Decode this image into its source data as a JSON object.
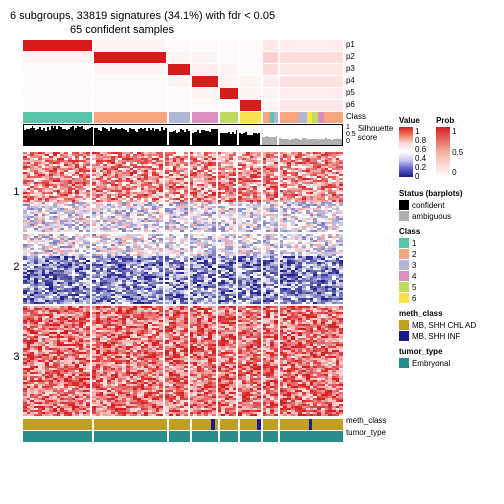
{
  "title": "6 subgroups, 33819 signatures (34.1%) with fdr < 0.05",
  "subtitle": "65 confident samples",
  "prob_labels": [
    "p1",
    "p2",
    "p3",
    "p4",
    "p5",
    "p6"
  ],
  "class_label": "Class",
  "silh_label": "Silhouette score",
  "silh_ticks": [
    "1",
    "0.5",
    "0"
  ],
  "bottom_labels": [
    "meth_class",
    "tumor_type"
  ],
  "cluster_labels": [
    "1",
    "2",
    "3"
  ],
  "group_widths": [
    72,
    76,
    22,
    28,
    18,
    22,
    16,
    66
  ],
  "class_colors": [
    "#5ac3a8",
    "#f4a582",
    "#b0b7d6",
    "#d98fc1",
    "#bfd961",
    "#f9e24b",
    "#f4a582",
    "#mix"
  ],
  "class_segs": [
    {
      "w": 72,
      "c": "#5ac3a8"
    },
    {
      "w": 2,
      "c": "#fff"
    },
    {
      "w": 76,
      "c": "#f4a582"
    },
    {
      "w": 2,
      "c": "#fff"
    },
    {
      "w": 22,
      "c": "#b0b7d6"
    },
    {
      "w": 2,
      "c": "#fff"
    },
    {
      "w": 28,
      "c": "#d98fc1"
    },
    {
      "w": 2,
      "c": "#fff"
    },
    {
      "w": 18,
      "c": "#bfd961"
    },
    {
      "w": 2,
      "c": "#fff"
    },
    {
      "w": 22,
      "c": "#f9e24b"
    },
    {
      "w": 2,
      "c": "#fff"
    },
    {
      "w": 8,
      "c": "#f4a582"
    },
    {
      "w": 4,
      "c": "#5ac3a8"
    },
    {
      "w": 4,
      "c": "#b0b7d6"
    },
    {
      "w": 2,
      "c": "#fff"
    },
    {
      "w": 20,
      "c": "#f4a582"
    },
    {
      "w": 8,
      "c": "#b0b7d6"
    },
    {
      "w": 6,
      "c": "#f9e24b"
    },
    {
      "w": 6,
      "c": "#bfd961"
    },
    {
      "w": 6,
      "c": "#d98fc1"
    },
    {
      "w": 20,
      "c": "#f4a582"
    }
  ],
  "meth_segs": [
    {
      "w": 72,
      "c": "#bfa023"
    },
    {
      "w": 2,
      "c": "#fff"
    },
    {
      "w": 76,
      "c": "#bfa023"
    },
    {
      "w": 2,
      "c": "#fff"
    },
    {
      "w": 22,
      "c": "#bfa023"
    },
    {
      "w": 2,
      "c": "#fff"
    },
    {
      "w": 20,
      "c": "#bfa023"
    },
    {
      "w": 4,
      "c": "#1a1a8a"
    },
    {
      "w": 4,
      "c": "#bfa023"
    },
    {
      "w": 2,
      "c": "#fff"
    },
    {
      "w": 18,
      "c": "#bfa023"
    },
    {
      "w": 2,
      "c": "#fff"
    },
    {
      "w": 18,
      "c": "#bfa023"
    },
    {
      "w": 4,
      "c": "#1a1a8a"
    },
    {
      "w": 2,
      "c": "#fff"
    },
    {
      "w": 16,
      "c": "#bfa023"
    },
    {
      "w": 2,
      "c": "#fff"
    },
    {
      "w": 30,
      "c": "#bfa023"
    },
    {
      "w": 4,
      "c": "#1a1a8a"
    },
    {
      "w": 32,
      "c": "#bfa023"
    }
  ],
  "tumor_segs": [
    {
      "w": 72,
      "c": "#2b8c8c"
    },
    {
      "w": 2,
      "c": "#fff"
    },
    {
      "w": 76,
      "c": "#2b8c8c"
    },
    {
      "w": 2,
      "c": "#fff"
    },
    {
      "w": 22,
      "c": "#2b8c8c"
    },
    {
      "w": 2,
      "c": "#fff"
    },
    {
      "w": 28,
      "c": "#2b8c8c"
    },
    {
      "w": 2,
      "c": "#fff"
    },
    {
      "w": 18,
      "c": "#2b8c8c"
    },
    {
      "w": 2,
      "c": "#fff"
    },
    {
      "w": 22,
      "c": "#2b8c8c"
    },
    {
      "w": 2,
      "c": "#fff"
    },
    {
      "w": 16,
      "c": "#2b8c8c"
    },
    {
      "w": 2,
      "c": "#fff"
    },
    {
      "w": 66,
      "c": "#2b8c8c"
    }
  ],
  "legends": {
    "value": {
      "title": "Value",
      "ticks": [
        "1",
        "0.8",
        "0.6",
        "0.4",
        "0.2",
        "0"
      ],
      "gradient": "linear-gradient(to bottom,#d62020,#f08060,#fcdcdc,#ffffff,#c8c8f0,#6060d0,#1a1a8a)"
    },
    "prob": {
      "title": "Prob",
      "ticks": [
        "1",
        "0.5",
        "0"
      ],
      "gradient": "linear-gradient(to bottom,#d62020,#f4b0a0,#ffffff)"
    },
    "status": {
      "title": "Status (barplots)",
      "items": [
        {
          "c": "#000",
          "l": "confident"
        },
        {
          "c": "#b0b0b0",
          "l": "ambiguous"
        }
      ]
    },
    "class": {
      "title": "Class",
      "items": [
        {
          "c": "#5ac3a8",
          "l": "1"
        },
        {
          "c": "#f4a582",
          "l": "2"
        },
        {
          "c": "#b0b7d6",
          "l": "3"
        },
        {
          "c": "#d98fc1",
          "l": "4"
        },
        {
          "c": "#bfd961",
          "l": "5"
        },
        {
          "c": "#f9e24b",
          "l": "6"
        }
      ]
    },
    "meth": {
      "title": "meth_class",
      "items": [
        {
          "c": "#bfa023",
          "l": "MB, SHH CHL AD"
        },
        {
          "c": "#1a1a8a",
          "l": "MB, SHH INF"
        }
      ]
    },
    "tumor": {
      "title": "tumor_type",
      "items": [
        {
          "c": "#2b8c8c",
          "l": "Embryonal"
        }
      ]
    }
  }
}
